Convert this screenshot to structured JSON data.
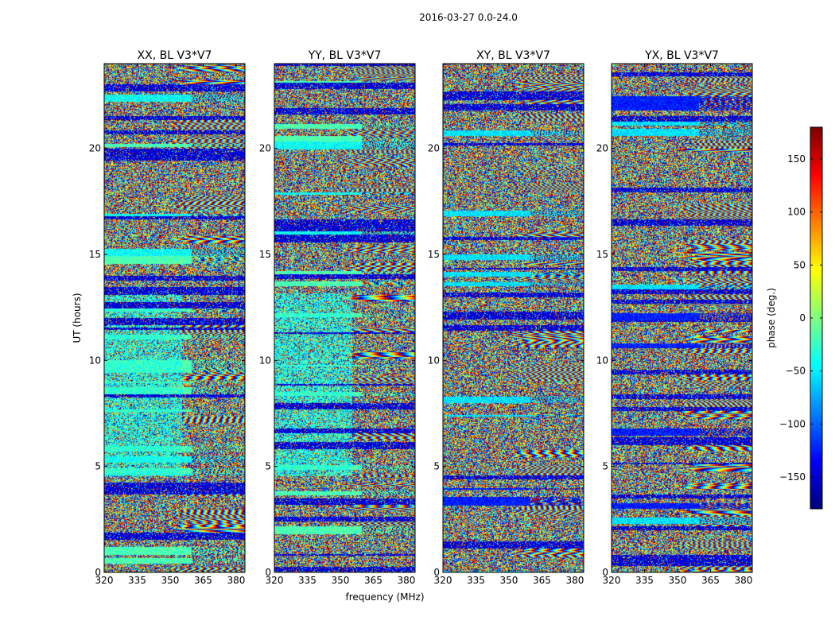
{
  "figure": {
    "suptitle": "2016-03-27 0.0-24.0",
    "ylabel": "UT (hours)",
    "xlabel": "frequency (MHz)"
  },
  "chart_data": {
    "type": "heatmap",
    "colormap": "jet",
    "x_range": [
      320,
      384
    ],
    "x_ticks": [
      "320",
      "335",
      "350",
      "365",
      "380"
    ],
    "y_range": [
      0,
      24
    ],
    "y_ticks": [
      "0",
      "5",
      "10",
      "15",
      "20"
    ],
    "panels": [
      {
        "title": "XX, BL V3*V7",
        "polarization": "XX",
        "variant": 0
      },
      {
        "title": "YY, BL V3*V7",
        "polarization": "YY",
        "variant": 1
      },
      {
        "title": "XY, BL V3*V7",
        "polarization": "XY",
        "variant": 2
      },
      {
        "title": "YX, BL V3*V7",
        "polarization": "YX",
        "variant": 3
      }
    ],
    "colorbar": {
      "label": "phase (deg.)",
      "range": [
        -180,
        180
      ],
      "ticks": [
        "150",
        "100",
        "50",
        "0",
        "−50",
        "−100",
        "−150"
      ],
      "tick_values": [
        150,
        100,
        50,
        0,
        -50,
        -100,
        -150
      ]
    }
  }
}
